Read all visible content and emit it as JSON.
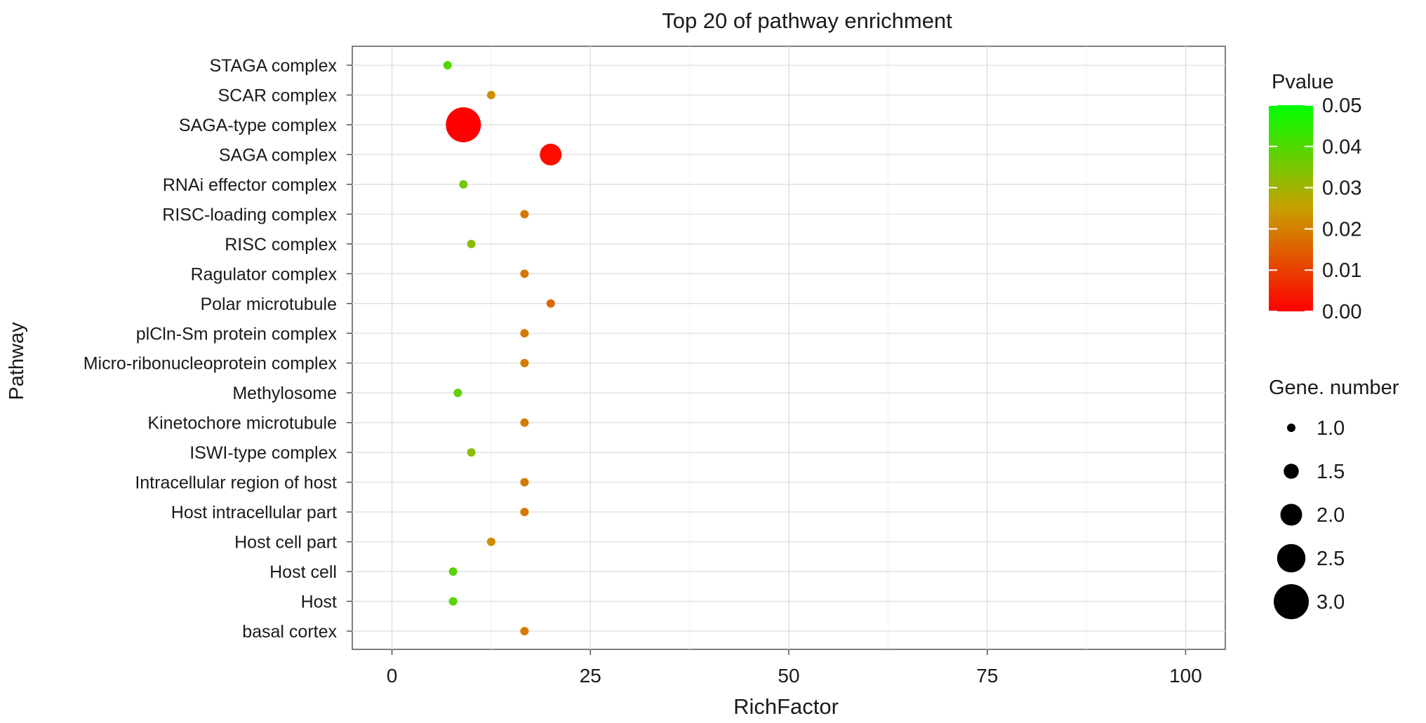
{
  "chart_data": {
    "type": "scatter",
    "title": "Top 20 of pathway enrichment",
    "xlabel": "RichFactor",
    "ylabel": "Pathway",
    "xlim": [
      -5,
      105
    ],
    "xticks": [
      0,
      25,
      50,
      75,
      100
    ],
    "grid": true,
    "categories": [
      "STAGA complex",
      "SCAR complex",
      "SAGA-type complex",
      "SAGA complex",
      "RNAi effector complex",
      "RISC-loading complex",
      "RISC complex",
      "Ragulator complex",
      "Polar microtubule",
      "plCln-Sm protein complex",
      "Micro-ribonucleoprotein complex",
      "Methylosome",
      "Kinetochore microtubule",
      "ISWI-type complex",
      "Intracellular region of host",
      "Host intracellular part",
      "Host cell part",
      "Host cell",
      "Host",
      "basal cortex"
    ],
    "points": [
      {
        "pathway": "STAGA complex",
        "rich_factor": 7.0,
        "pvalue": 0.04,
        "gene_number": 1
      },
      {
        "pathway": "SCAR complex",
        "rich_factor": 12.5,
        "pvalue": 0.022,
        "gene_number": 1
      },
      {
        "pathway": "SAGA-type complex",
        "rich_factor": 9.0,
        "pvalue": 0.0,
        "gene_number": 3
      },
      {
        "pathway": "SAGA complex",
        "rich_factor": 20.0,
        "pvalue": 0.002,
        "gene_number": 2
      },
      {
        "pathway": "RNAi effector complex",
        "rich_factor": 9.0,
        "pvalue": 0.036,
        "gene_number": 1
      },
      {
        "pathway": "RISC-loading complex",
        "rich_factor": 16.7,
        "pvalue": 0.019,
        "gene_number": 1
      },
      {
        "pathway": "RISC complex",
        "rich_factor": 10.0,
        "pvalue": 0.033,
        "gene_number": 1
      },
      {
        "pathway": "Ragulator complex",
        "rich_factor": 16.7,
        "pvalue": 0.019,
        "gene_number": 1
      },
      {
        "pathway": "Polar microtubule",
        "rich_factor": 20.0,
        "pvalue": 0.016,
        "gene_number": 1
      },
      {
        "pathway": "plCln-Sm protein complex",
        "rich_factor": 16.7,
        "pvalue": 0.019,
        "gene_number": 1
      },
      {
        "pathway": "Micro-ribonucleoprotein complex",
        "rich_factor": 16.7,
        "pvalue": 0.019,
        "gene_number": 1
      },
      {
        "pathway": "Methylosome",
        "rich_factor": 8.3,
        "pvalue": 0.038,
        "gene_number": 1
      },
      {
        "pathway": "Kinetochore microtubule",
        "rich_factor": 16.7,
        "pvalue": 0.019,
        "gene_number": 1
      },
      {
        "pathway": "ISWI-type complex",
        "rich_factor": 10.0,
        "pvalue": 0.033,
        "gene_number": 1
      },
      {
        "pathway": "Intracellular region of host",
        "rich_factor": 16.7,
        "pvalue": 0.019,
        "gene_number": 1
      },
      {
        "pathway": "Host intracellular part",
        "rich_factor": 16.7,
        "pvalue": 0.019,
        "gene_number": 1
      },
      {
        "pathway": "Host cell part",
        "rich_factor": 12.5,
        "pvalue": 0.022,
        "gene_number": 1
      },
      {
        "pathway": "Host cell",
        "rich_factor": 7.7,
        "pvalue": 0.039,
        "gene_number": 1
      },
      {
        "pathway": "Host",
        "rich_factor": 7.7,
        "pvalue": 0.039,
        "gene_number": 1
      },
      {
        "pathway": "basal cortex",
        "rich_factor": 16.7,
        "pvalue": 0.019,
        "gene_number": 1
      }
    ],
    "color_legend": {
      "title": "Pvalue",
      "range": [
        0.0,
        0.05
      ],
      "ticks": [
        "0.05",
        "0.04",
        "0.03",
        "0.02",
        "0.01",
        "0.00"
      ],
      "low_color": "#ff0000",
      "mid_color": "#c8a000",
      "high_color": "#00ff00",
      "placement": "right"
    },
    "size_legend": {
      "title": "Gene. number",
      "values": [
        1.0,
        1.5,
        2.0,
        2.5,
        3.0
      ],
      "labels": [
        "1.0",
        "1.5",
        "2.0",
        "2.5",
        "3.0"
      ],
      "placement": "right"
    }
  }
}
